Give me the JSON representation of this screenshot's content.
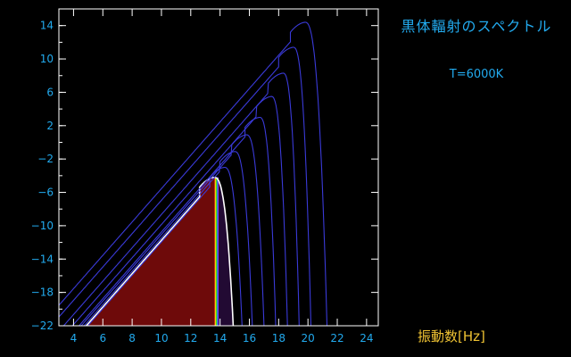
{
  "header": {
    "title": "黒体輻射のスペクトル",
    "temperature_label": "T=6000K"
  },
  "colors": {
    "background": "#000000",
    "axis_frame": "#ffffff",
    "tick_text": "#22aaee",
    "title_text": "#22aaee",
    "xlabel_text": "#eec233",
    "curve": "#3a3ad8",
    "highlight_curve": "#ffffff",
    "fill": "#6e0a0a",
    "fill_dark_tail": "#220a33"
  },
  "chart_data": {
    "type": "line",
    "title": "黒体輻射のスペクトル",
    "subtitle": "T=6000K",
    "xlabel": "振動数[Hz]",
    "ylabel": "",
    "xlim": [
      3,
      24.8
    ],
    "ylim": [
      -22,
      16
    ],
    "x_ticks": [
      4,
      6,
      8,
      10,
      12,
      14,
      16,
      18,
      20,
      22,
      24
    ],
    "y_ticks": [
      14,
      10,
      6,
      2,
      -2,
      -6,
      -10,
      -14,
      -18,
      -22
    ],
    "x_tick_labels": [
      "4",
      "6",
      "8",
      "10",
      "12",
      "14",
      "16",
      "18",
      "20",
      "22",
      "24"
    ],
    "y_tick_labels": [
      "14",
      "10",
      "6",
      "2",
      "−2",
      "−6",
      "−10",
      "−14",
      "−18",
      "−22"
    ],
    "grid": false,
    "legend": "none",
    "series": [
      {
        "temperature_exponent": 3.0,
        "peak_x": 13.6,
        "peak_y": -4.2,
        "cutoff_x": 14.9,
        "highlighted": true
      },
      {
        "temperature_exponent": 3.5,
        "peak_x": 14.3,
        "peak_y": -3.0,
        "cutoff_x": 15.5
      },
      {
        "temperature_exponent": 4.0,
        "peak_x": 15.0,
        "peak_y": -1.1,
        "cutoff_x": 16.2
      },
      {
        "temperature_exponent": 4.5,
        "peak_x": 15.8,
        "peak_y": 0.9,
        "cutoff_x": 17.0
      },
      {
        "temperature_exponent": 5.0,
        "peak_x": 16.7,
        "peak_y": 3.0,
        "cutoff_x": 17.8
      },
      {
        "temperature_exponent": 5.5,
        "peak_x": 17.5,
        "peak_y": 5.5,
        "cutoff_x": 18.6
      },
      {
        "temperature_exponent": 6.0,
        "peak_x": 18.3,
        "peak_y": 8.3,
        "cutoff_x": 19.4
      },
      {
        "temperature_exponent": 6.5,
        "peak_x": 19.0,
        "peak_y": 11.4,
        "cutoff_x": 20.2
      },
      {
        "temperature_exponent": 7.0,
        "peak_x": 19.8,
        "peak_y": 14.4,
        "cutoff_x": 21.3
      }
    ],
    "visible_spectrum_band_x": [
      13.62,
      13.9
    ]
  }
}
